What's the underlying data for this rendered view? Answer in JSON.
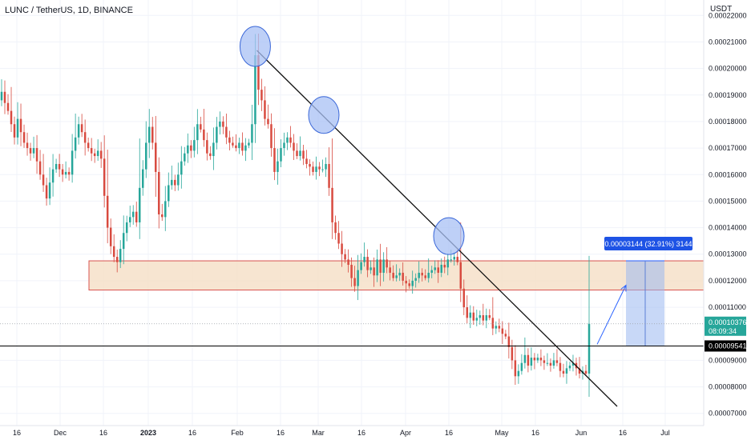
{
  "header": {
    "title": "LUNC / TetherUS, 1D, BINANCE"
  },
  "chart_data": {
    "type": "candlestick",
    "title": "LUNC / TetherUS, 1D, BINANCE",
    "price_axis_unit": "USDT",
    "y_ticks": [
      "0.00022000",
      "0.00021000",
      "0.00020000",
      "0.00019000",
      "0.00018000",
      "0.00017000",
      "0.00016000",
      "0.00015000",
      "0.00014000",
      "0.00013000",
      "0.00012000",
      "0.00011000",
      "0.00009000",
      "0.00008000",
      "0.00007000"
    ],
    "x_ticks": [
      "16",
      "Dec",
      "16",
      "2023",
      "16",
      "Feb",
      "16",
      "Mar",
      "16",
      "Apr",
      "16",
      "May",
      "16",
      "Jun",
      "16",
      "Jul"
    ],
    "ylim": [
      6.6e-05,
      0.000224
    ],
    "last_price": {
      "value": "0.00010376",
      "countdown": "08:09:34"
    },
    "horizontal_level": "0.00009541",
    "measure_label": "0.00003144 (32.91%) 3144",
    "zone": {
      "low": 0.0001165,
      "high": 0.0001275
    },
    "closes": [
      0.0001912,
      0.000187,
      0.000184,
      0.000179,
      0.000174,
      0.000181,
      0.000176,
      0.000172,
      0.00017,
      0.000168,
      0.00017,
      0.000165,
      0.00016,
      0.000156,
      0.000151,
      0.000157,
      0.000162,
      0.000164,
      0.000162,
      0.00016,
      0.000161,
      0.00016,
      0.000169,
      0.000174,
      0.000179,
      0.000176,
      0.000172,
      0.00017,
      0.000168,
      0.000167,
      0.000169,
      0.000166,
      0.000152,
      0.00014,
      0.000133,
      0.000129,
      0.000127,
      0.000132,
      0.000138,
      0.000142,
      0.000144,
      0.000146,
      0.000142,
      0.000155,
      0.000162,
      0.000172,
      0.000178,
      0.000172,
      0.000161,
      0.000145,
      0.000144,
      0.00015,
      0.000156,
      0.000158,
      0.000156,
      0.00016,
      0.000165,
      0.000168,
      0.000171,
      0.000169,
      0.000173,
      0.000179,
      0.000177,
      0.000173,
      0.000168,
      0.000167,
      0.000172,
      0.000178,
      0.00018,
      0.000178,
      0.000174,
      0.000172,
      0.000171,
      0.00017,
      0.000172,
      0.000169,
      0.000171,
      0.000172,
      0.000179,
      0.000205,
      0.000192,
      0.000188,
      0.000181,
      0.000179,
      0.00017,
      0.000161,
      0.000165,
      0.00017,
      0.000172,
      0.000174,
      0.000172,
      0.000169,
      0.000167,
      0.000169,
      0.000166,
      0.000164,
      0.000163,
      0.000161,
      0.000163,
      0.000162,
      0.000162,
      0.000164,
      0.000155,
      0.000142,
      0.000138,
      0.000134,
      0.00013,
      0.000128,
      0.000126,
      0.000121,
      0.000118,
      0.000124,
      0.000127,
      0.000129,
      0.000124,
      0.000125,
      0.000122,
      0.000128,
      0.000123,
      0.000128,
      0.000125,
      0.000123,
      0.000121,
      0.000122,
      0.000123,
      0.00012,
      0.000119,
      0.000118,
      0.00012,
      0.000121,
      0.000123,
      0.000122,
      0.000121,
      0.000123,
      0.000124,
      0.000125,
      0.000123,
      0.000126,
      0.000125,
      0.000128,
      0.000128,
      0.000129,
      0.000127,
      0.000117,
      0.00011,
      0.000106,
      0.000108,
      0.000105,
      0.000106,
      0.000107,
      0.000105,
      0.000107,
      0.000106,
      0.000102,
      0.000103,
      0.000102,
      0.0001,
      9.9e-05,
      9.5e-05,
      9e-05,
      8.4e-05,
      8.6e-05,
      8.9e-05,
      9.2e-05,
      8.8e-05,
      9.1e-05,
      9e-05,
      9.1e-05,
      9e-05,
      8.9e-05,
      8.9e-05,
      8.8e-05,
      9e-05,
      8.9e-05,
      8.6e-05,
      8.5e-05,
      8.7e-05,
      8.8e-05,
      8.9e-05,
      8.7e-05,
      8.5e-05,
      8.6e-05,
      8.5e-05,
      0.0001038
    ]
  }
}
